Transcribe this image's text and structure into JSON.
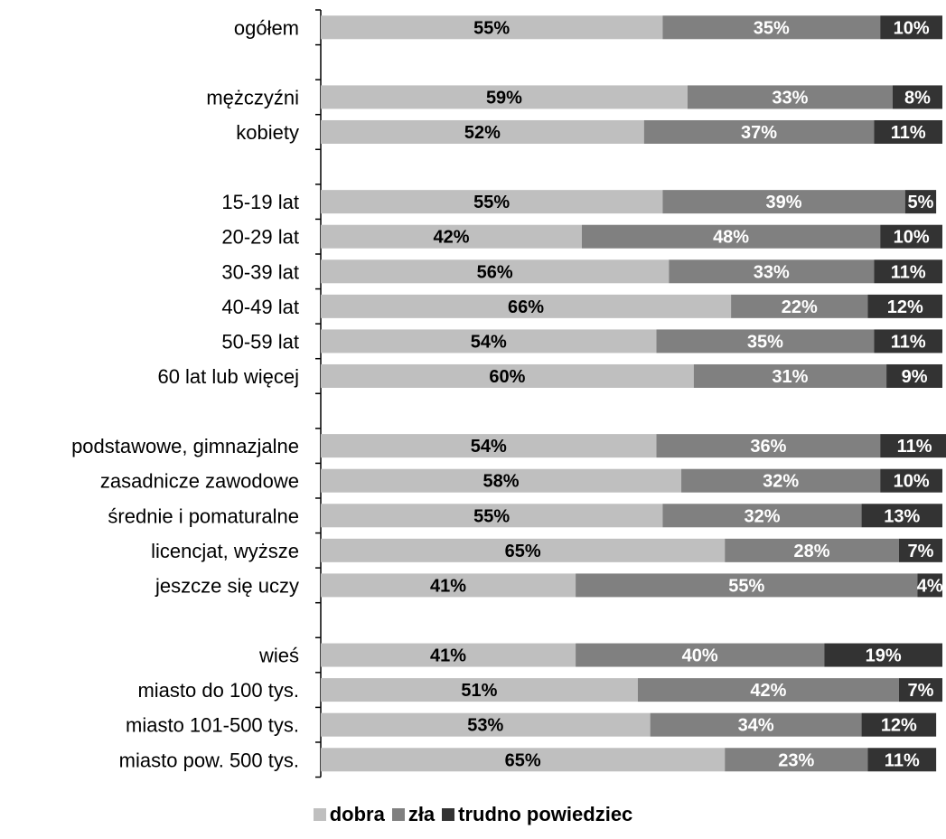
{
  "chart_data": {
    "type": "bar",
    "orientation": "horizontal",
    "stacked": "percent",
    "categories": [
      "ogółem",
      "",
      "mężczyźni",
      "kobiety",
      "",
      "15-19 lat",
      "20-29 lat",
      "30-39 lat",
      "40-49 lat",
      "50-59 lat",
      "60 lat lub więcej",
      "",
      "podstawowe, gimnazjalne",
      "zasadnicze zawodowe",
      "średnie i pomaturalne",
      "licencjat, wyższe",
      "jeszcze się uczy",
      "",
      "wieś",
      "miasto do 100 tys.",
      "miasto 101-500 tys.",
      "miasto pow. 500 tys."
    ],
    "series": [
      {
        "name": "dobra",
        "color": "#bfbfbf",
        "label_color": "#000000",
        "values": [
          55,
          null,
          59,
          52,
          null,
          55,
          42,
          56,
          66,
          54,
          60,
          null,
          54,
          58,
          55,
          65,
          41,
          null,
          41,
          51,
          53,
          65
        ]
      },
      {
        "name": "zła",
        "color": "#808080",
        "label_color": "#ffffff",
        "values": [
          35,
          null,
          33,
          37,
          null,
          39,
          48,
          33,
          22,
          35,
          31,
          null,
          36,
          32,
          32,
          28,
          55,
          null,
          40,
          42,
          34,
          23
        ]
      },
      {
        "name": "trudno powiedziec",
        "color": "#333333",
        "label_color": "#ffffff",
        "values": [
          10,
          null,
          8,
          11,
          null,
          5,
          10,
          11,
          12,
          11,
          9,
          null,
          11,
          10,
          13,
          7,
          4,
          null,
          19,
          7,
          12,
          11
        ]
      }
    ],
    "value_suffix": "%",
    "xlim": [
      0,
      100
    ],
    "grid": false,
    "legend_position": "bottom"
  }
}
